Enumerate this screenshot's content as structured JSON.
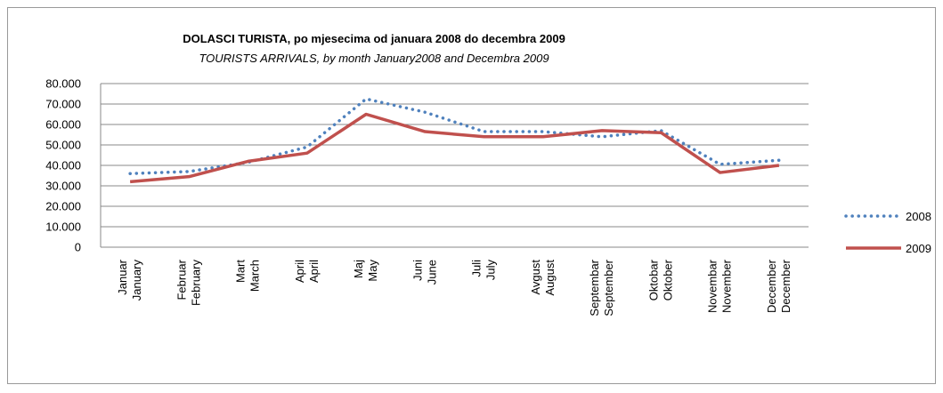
{
  "chart_data": {
    "type": "line",
    "title": "DOLASCI TURISTA, po mjesecima od januara 2008 do decembra  2009",
    "subtitle": "TOURISTS ARRIVALS, by month January2008 and Decembra 2009",
    "categories": [
      "Januar",
      "Februar",
      "Mart",
      "April",
      "Maj",
      "Juni",
      "Juli",
      "Avgust",
      "Septembar",
      "Oktobar",
      "Novembar",
      "December"
    ],
    "categories_en": [
      "January",
      "February",
      "March",
      "April",
      "May",
      "June",
      "July",
      "August",
      "September",
      "Oktober",
      "November",
      "December"
    ],
    "series": [
      {
        "name": "2008",
        "color": "#4f81bd",
        "style": "dotted",
        "values": [
          36000,
          37000,
          41500,
          49000,
          72500,
          66000,
          56500,
          56500,
          54000,
          57000,
          40500,
          42500
        ]
      },
      {
        "name": "2009",
        "color": "#c0504d",
        "style": "solid",
        "values": [
          32000,
          34500,
          42000,
          46000,
          65000,
          56500,
          54000,
          54000,
          57000,
          56000,
          36500,
          40000
        ]
      }
    ],
    "ylim": [
      0,
      80000
    ],
    "yticks": [
      0,
      {
        "value": 10000,
        "label": "10.000"
      },
      {
        "value": 20000,
        "label": "20.000"
      },
      {
        "value": 30000,
        "label": "30.000"
      },
      {
        "value": 40000,
        "label": "40.000"
      },
      {
        "value": 50000,
        "label": "50.000"
      },
      {
        "value": 60000,
        "label": "60.000"
      },
      {
        "value": 70000,
        "label": "70.000"
      },
      {
        "value": 80000,
        "label": "80.000"
      }
    ],
    "grid": true,
    "legend": "right"
  }
}
